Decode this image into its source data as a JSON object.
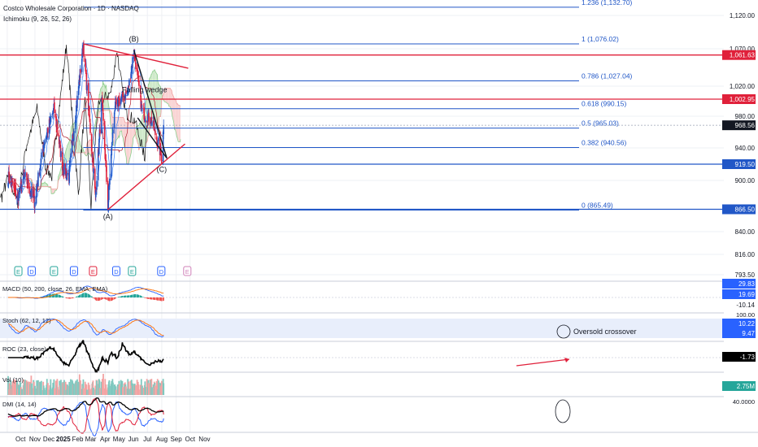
{
  "header": {
    "symbol_title": "Costco Wholesale Corporation · 1D · NASDAQ",
    "indicator": "Ichimoku (9, 26, 52, 26)"
  },
  "colors": {
    "up": "#2157c7",
    "down": "#e0203a",
    "fib_blue": "#2157c7",
    "red_line": "#e0203a",
    "cloud_green": "#cde8c8",
    "cloud_red": "#f9d2d2",
    "grid": "#eef0f4",
    "axis_text": "#131722"
  },
  "chart_data": [
    {
      "type": "candlestick",
      "title": "",
      "ylim": [
        790,
        1140
      ],
      "y_ticks": [
        "1,120.00",
        "1,070.00",
        "1,020.00",
        "980.00",
        "940.00",
        "900.00",
        "840.00",
        "816.00",
        "793.50"
      ],
      "price_tags": [
        {
          "label": "1,061.63",
          "value": 1061.63,
          "color": "#e0203a"
        },
        {
          "label": "1,002.95",
          "value": 1002.95,
          "color": "#e0203a"
        },
        {
          "label": "968.56",
          "value": 968.56,
          "color": "#131722"
        },
        {
          "label": "919.50",
          "value": 919.5,
          "color": "#2157c7"
        },
        {
          "label": "866.50",
          "value": 866.5,
          "color": "#2157c7"
        }
      ],
      "fib_levels": [
        {
          "label": "1.236 (1,132.70)",
          "value": 1132.7
        },
        {
          "label": "1 (1,076.02)",
          "value": 1076.02
        },
        {
          "label": "0.786 (1,027.04)",
          "value": 1027.04
        },
        {
          "label": "0.618 (990.15)",
          "value": 990.15
        },
        {
          "label": "0.5 (965.03)",
          "value": 965.03
        },
        {
          "label": "0.382 (940.56)",
          "value": 940.56
        },
        {
          "label": "0 (865.49)",
          "value": 865.49
        }
      ],
      "annotations": [
        {
          "label": "(B)",
          "date": "2025-06-02",
          "value": 1080
        },
        {
          "label": "(A)",
          "date": "2025-04-07",
          "value": 855
        },
        {
          "label": "(C)",
          "date": "2025-08-01",
          "value": 910
        },
        {
          "label": "Falling wedge",
          "date": "2025-06-25",
          "value": 1012
        }
      ],
      "horizontal_lines": [
        {
          "value": 1061.63,
          "color": "#e0203a"
        },
        {
          "value": 1002.95,
          "color": "#e0203a"
        },
        {
          "value": 919.5,
          "color": "#2157c7"
        },
        {
          "value": 866.5,
          "color": "#2157c7"
        }
      ],
      "trendlines": [
        {
          "from": [
            "2025-02-13",
            1076
          ],
          "to": [
            "2025-09-27",
            1044
          ],
          "color": "#e0203a"
        },
        {
          "from": [
            "2025-04-07",
            866
          ],
          "to": [
            "2025-09-20",
            945
          ],
          "color": "#e0203a"
        },
        {
          "from": [
            "2025-06-02",
            1068
          ],
          "to": [
            "2025-08-12",
            927
          ],
          "color": "#131722"
        },
        {
          "from": [
            "2025-06-10",
            978
          ],
          "to": [
            "2025-08-12",
            927
          ],
          "color": "#131722"
        }
      ],
      "event_markers": [
        {
          "label": "E",
          "date": "2024-09-26",
          "color": "#26a69a"
        },
        {
          "label": "D",
          "date": "2024-10-25",
          "color": "#2962ff"
        },
        {
          "label": "E",
          "date": "2024-12-12",
          "color": "#26a69a"
        },
        {
          "label": "D",
          "date": "2025-01-24",
          "color": "#2962ff"
        },
        {
          "label": "E",
          "date": "2025-03-06",
          "color": "#e0203a"
        },
        {
          "label": "D",
          "date": "2025-04-25",
          "color": "#2962ff"
        },
        {
          "label": "E",
          "date": "2025-05-29",
          "color": "#26a69a"
        },
        {
          "label": "D",
          "date": "2025-07-31",
          "color": "#2962ff"
        },
        {
          "label": "E",
          "date": "2025-09-25",
          "color": "#d081b8"
        }
      ],
      "key_points": [
        {
          "date": "2024-09-03",
          "close": 905
        },
        {
          "date": "2024-09-25",
          "close": 880
        },
        {
          "date": "2024-10-10",
          "close": 905
        },
        {
          "date": "2024-10-31",
          "close": 875
        },
        {
          "date": "2024-11-20",
          "close": 945
        },
        {
          "date": "2024-12-12",
          "close": 990
        },
        {
          "date": "2024-12-31",
          "close": 915
        },
        {
          "date": "2025-01-13",
          "close": 905
        },
        {
          "date": "2025-02-13",
          "close": 1075
        },
        {
          "date": "2025-03-11",
          "close": 880
        },
        {
          "date": "2025-03-25",
          "close": 1000
        },
        {
          "date": "2025-04-07",
          "close": 870
        },
        {
          "date": "2025-04-21",
          "close": 990
        },
        {
          "date": "2025-05-07",
          "close": 1005
        },
        {
          "date": "2025-05-20",
          "close": 1012
        },
        {
          "date": "2025-06-02",
          "close": 1068
        },
        {
          "date": "2025-06-20",
          "close": 985
        },
        {
          "date": "2025-07-10",
          "close": 975
        },
        {
          "date": "2025-08-01",
          "close": 928
        },
        {
          "date": "2025-08-05",
          "close": 968.56
        }
      ],
      "x_ticks": [
        "Oct",
        "Nov",
        "Dec",
        "2025",
        "Feb",
        "Mar",
        "Apr",
        "May",
        "Jun",
        "Jul",
        "Aug",
        "Sep",
        "Oct",
        "Nov"
      ]
    },
    {
      "type": "line",
      "title": "MACD (50, 200, close, 26, EMA, EMA)",
      "values_shown": [
        "29.83",
        "19.69",
        "-10.14"
      ]
    },
    {
      "type": "line",
      "title": "Stoch (62, 12, 12)",
      "y_ticks": [
        "100.00"
      ],
      "values_shown": [
        "10.22",
        "9.47"
      ],
      "annotation": "Oversold crossover"
    },
    {
      "type": "line",
      "title": "ROC (23, close)",
      "values_shown": [
        "-1.73"
      ]
    },
    {
      "type": "bar",
      "title": "Vol (10)",
      "values_shown": [
        "2.75M"
      ]
    },
    {
      "type": "line",
      "title": "DMI (14, 14)",
      "y_ticks": [
        "40.0000"
      ]
    }
  ]
}
